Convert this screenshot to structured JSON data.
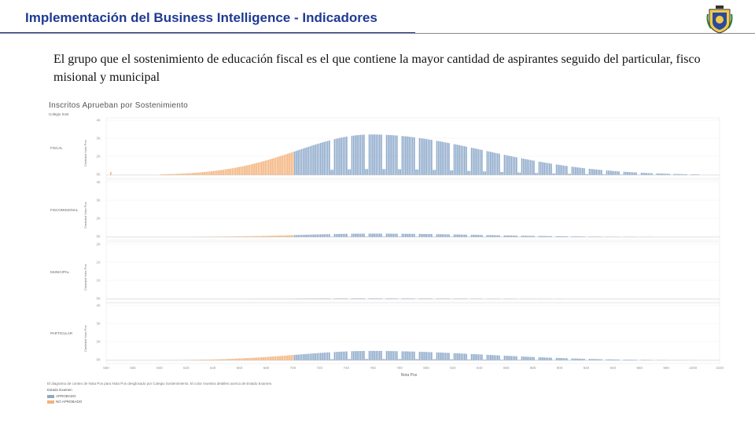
{
  "slide": {
    "title": "Implementación del Business Intelligence - Indicadores",
    "subtitle": "El grupo que el sostenimiento de educación fiscal es el que contiene la mayor cantidad de aspirantes seguido del particular, fisco misional y municipal"
  },
  "colors": {
    "approved": "#8eaacb",
    "not_approved": "#f3b27a",
    "title": "#1f3a93"
  },
  "chart_data": {
    "type": "area",
    "title": "Inscritos Aprueban por Sostenimiento",
    "facet_header": "Colegio Sost",
    "xlabel": "Nota Pos",
    "ylabel": "Cantidad Nota Pos",
    "x_ticks": [
      "560",
      "580",
      "600",
      "620",
      "640",
      "660",
      "680",
      "700",
      "720",
      "740",
      "760",
      "780",
      "800",
      "820",
      "840",
      "860",
      "880",
      "900",
      "920",
      "940",
      "960",
      "980",
      "1000",
      "1020"
    ],
    "x_range": [
      560,
      1020
    ],
    "threshold": 700,
    "series_names": [
      "APROBADO",
      "NO APROBADO"
    ],
    "panels": [
      {
        "name": "FISCAL",
        "y_ticks": [
          "4K",
          "3K",
          "2K",
          "0K"
        ],
        "y_max": 4000,
        "peak": 3000,
        "peak_at": 758
      },
      {
        "name": "FISCOMISIONAL",
        "y_ticks": [
          "4K",
          "3K",
          "2K",
          "0K"
        ],
        "y_max": 4000,
        "peak": 260,
        "peak_at": 758
      },
      {
        "name": "MUNICIPAL",
        "y_ticks": [
          "2K",
          "1K",
          "1K",
          "0K"
        ],
        "y_max": 2000,
        "peak": 25,
        "peak_at": 758
      },
      {
        "name": "PARTICULAR",
        "y_ticks": [
          "4K",
          "3K",
          "2K",
          "0K"
        ],
        "y_max": 4000,
        "peak": 700,
        "peak_at": 758
      }
    ],
    "caption": "El diagrama de conteo de Nota Pos para Nota Pos desglosado por Colegio Sostenimiento. El color muestra detalles acerca de Estado Examen.",
    "legend": {
      "title": "Estado Examen",
      "items": [
        "APROBADO",
        "NO APROBADO"
      ]
    }
  }
}
